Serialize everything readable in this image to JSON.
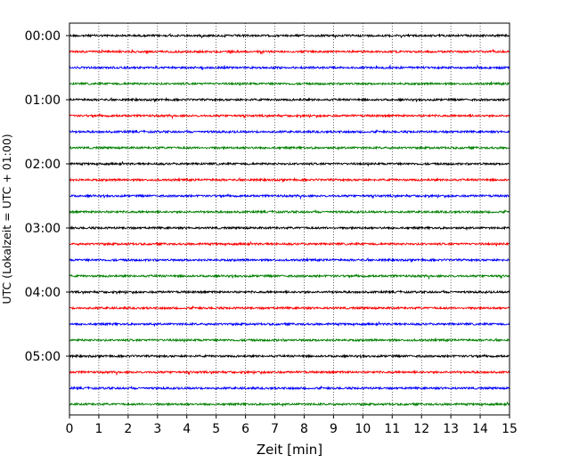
{
  "chart_data": {
    "type": "line",
    "xlabel": "Zeit  [min]",
    "ylabel": "UTC (Lokalzeit = UTC + 01:00)",
    "xlim": [
      0,
      15
    ],
    "x_ticks": [
      "0",
      "1",
      "2",
      "3",
      "4",
      "5",
      "6",
      "7",
      "8",
      "9",
      "10",
      "11",
      "12",
      "13",
      "14",
      "15"
    ],
    "y_ticks": [
      "00:00",
      "01:00",
      "02:00",
      "03:00",
      "04:00",
      "05:00"
    ],
    "trace_interval_min": 15,
    "trace_count": 24,
    "trace_colors": [
      "#000000",
      "#ff0000",
      "#0000ff",
      "#008000"
    ],
    "grid": "vertical-dotted",
    "legend": "none"
  }
}
